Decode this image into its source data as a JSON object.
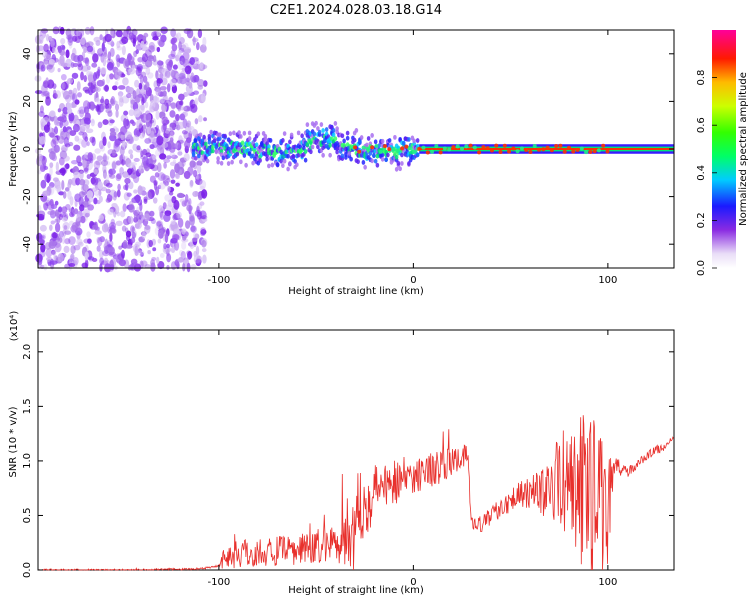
{
  "title": "C2E1.2024.028.03.18.G14",
  "chart_data": [
    {
      "type": "heatmap",
      "xlabel": "Height of straight line (km)",
      "ylabel": "Frequency (Hz)",
      "xlim": [
        -193,
        134
      ],
      "ylim": [
        -50,
        50
      ],
      "xticks": [
        -100,
        0,
        100
      ],
      "xtick_labels": [
        "-100",
        "0",
        "100"
      ],
      "yticks": [
        -40,
        -20,
        0,
        20,
        40
      ],
      "ytick_labels": [
        "-40",
        "-20",
        "0",
        "20",
        "40"
      ],
      "colorbar": {
        "label": "Normalized spectral amplitude",
        "range": [
          0,
          1
        ],
        "ticks": [
          0,
          0.2,
          0.4,
          0.6,
          0.8
        ],
        "tick_labels": [
          "0.0",
          "0.2",
          "0.4",
          "0.6",
          "0.8"
        ],
        "colormap": "rainbow (white → purple → blue → cyan → green → yellow → red → magenta)"
      },
      "regions": [
        {
          "x_range": [
            -193,
            -107
          ],
          "description_values": {
            "freq_range": [
              -50,
              50
            ],
            "amplitude": [
              0.05,
              0.2
            ]
          }
        },
        {
          "x_range": [
            -113,
            3
          ],
          "description_values": {
            "freq_center": 0,
            "freq_spread": 6,
            "amplitude": [
              0.1,
              0.55
            ]
          }
        },
        {
          "x_range": [
            3,
            134
          ],
          "description_values": {
            "freq_center": 0,
            "freq_spread": 1.5,
            "amplitude": [
              0.8,
              0.9
            ]
          }
        }
      ],
      "grid": false
    },
    {
      "type": "line",
      "xlabel": "Height of straight line (km)",
      "ylabel": "SNR (10 * v/v)",
      "y_multiplier": "(x10⁴)",
      "xlim": [
        -193,
        134
      ],
      "ylim": [
        0,
        2.2
      ],
      "xticks": [
        -100,
        0,
        100
      ],
      "xtick_labels": [
        "-100",
        "0",
        "100"
      ],
      "yticks": [
        0,
        0.5,
        1.0,
        1.5,
        2.0
      ],
      "ytick_labels": [
        "0.0",
        "0.5",
        "1.0",
        "1.5",
        "2.0"
      ],
      "color": "#e8302c",
      "series": [
        {
          "x": [
            -193,
            -150,
            -110,
            -100,
            -97,
            -90,
            -80,
            -70,
            -60,
            -50,
            -40,
            -35,
            -30,
            -28,
            -25,
            -20,
            -15,
            -10,
            -5,
            0,
            5,
            10,
            15,
            20,
            25,
            28,
            30,
            35,
            40,
            45,
            50,
            55,
            60,
            65,
            70,
            75,
            80,
            85,
            90,
            95,
            100,
            103,
            110,
            115,
            120,
            125,
            130,
            134
          ],
          "mean": [
            0.0,
            0.0,
            0.01,
            0.04,
            0.12,
            0.15,
            0.16,
            0.17,
            0.18,
            0.2,
            0.26,
            0.32,
            0.4,
            0.55,
            0.62,
            0.7,
            0.78,
            0.82,
            0.84,
            0.87,
            0.9,
            0.93,
            0.95,
            0.99,
            1.02,
            1.05,
            0.4,
            0.42,
            0.5,
            0.58,
            0.65,
            0.7,
            0.72,
            0.7,
            0.75,
            0.8,
            0.85,
            0.7,
            0.75,
            0.55,
            0.6,
            0.95,
            0.9,
            0.96,
            1.05,
            1.1,
            1.14,
            1.2
          ],
          "spread": [
            0.01,
            0.01,
            0.01,
            0.01,
            0.12,
            0.14,
            0.14,
            0.14,
            0.14,
            0.16,
            0.18,
            0.3,
            0.45,
            0.35,
            0.3,
            0.3,
            0.25,
            0.22,
            0.2,
            0.18,
            0.18,
            0.16,
            0.16,
            0.12,
            0.12,
            0.1,
            0.08,
            0.08,
            0.08,
            0.1,
            0.12,
            0.12,
            0.16,
            0.2,
            0.28,
            0.4,
            0.55,
            0.75,
            0.8,
            0.75,
            0.55,
            0.1,
            0.05,
            0.04,
            0.04,
            0.04,
            0.04,
            0.04
          ]
        }
      ],
      "grid": false
    }
  ]
}
